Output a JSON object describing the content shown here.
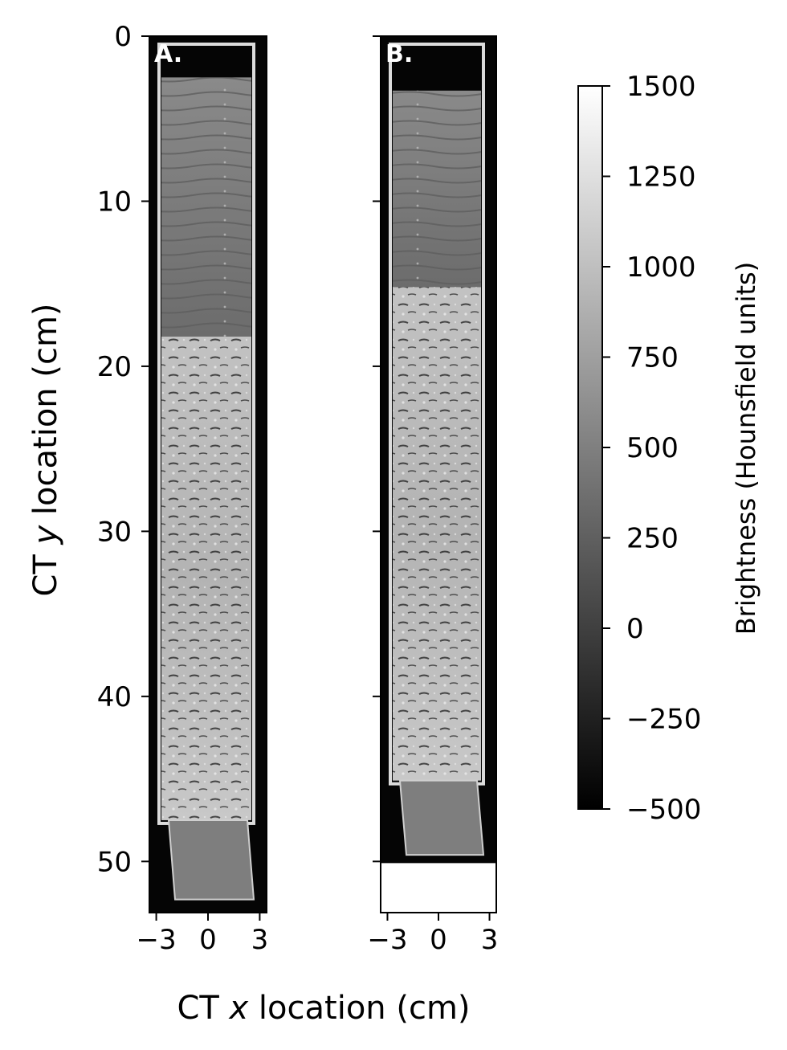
{
  "chart_data": {
    "type": "heatmap",
    "description_panels": [
      {
        "label": "A.",
        "xlim": [
          -3.4,
          3.4
        ],
        "ylim": [
          53.1,
          0
        ],
        "xticks": [
          -3,
          0,
          3
        ],
        "yticks": [
          0,
          10,
          20,
          30,
          40,
          50
        ],
        "core_top_cm": 2.5,
        "core_bottom_cm": 47.5,
        "end_cap_bottom_cm": 52.3
      },
      {
        "label": "B.",
        "xlim": [
          -3.4,
          3.4
        ],
        "ylim": [
          53.1,
          0
        ],
        "xticks": [
          -3,
          0,
          3
        ],
        "yticks": [
          0,
          10,
          20,
          30,
          40,
          50
        ],
        "core_top_cm": 3.3,
        "core_bottom_cm": 45.1,
        "end_cap_bottom_cm": 49.6,
        "image_extent_bottom_cm": 50.1
      }
    ],
    "xlabel": "CT x location (cm)",
    "xlabel_parts": [
      "CT ",
      "x",
      " location (cm)"
    ],
    "ylabel": "CT y location (cm)",
    "ylabel_parts": [
      "CT ",
      "y",
      " location (cm)"
    ],
    "colorbar": {
      "label": "Brightness (Hounsfield units)",
      "range": [
        -500,
        1500
      ],
      "ticks": [
        -500,
        -250,
        0,
        250,
        500,
        750,
        1000,
        1250,
        1500
      ],
      "tick_labels": [
        "−500",
        "−250",
        "0",
        "250",
        "500",
        "750",
        "1000",
        "1250",
        "1500"
      ],
      "colormap": "gray"
    },
    "tick_labels_x": [
      "−3",
      "0",
      "3"
    ],
    "tick_labels_y": [
      "0",
      "10",
      "20",
      "30",
      "40",
      "50"
    ]
  },
  "colors": {
    "air": "#050505",
    "sediment_upper": "#7c7c7c",
    "sediment_lower": "#bdbdbd",
    "end_cap": "#7e7e7e",
    "liner": "#dcdcdc"
  }
}
